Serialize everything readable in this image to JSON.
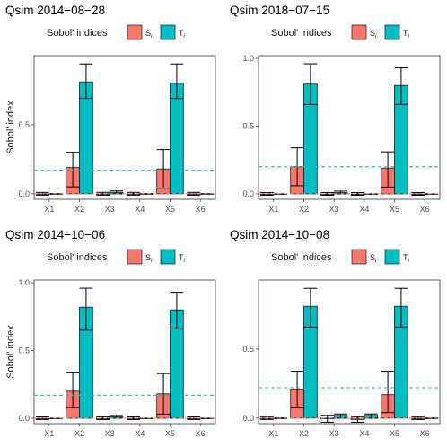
{
  "colors": {
    "si": "#F8766D",
    "ti": "#00BFC4",
    "dummy_line": "#26B7C2"
  },
  "legend": {
    "title": "Sobol' indices",
    "si_label": "S",
    "si_sub": "i",
    "ti_label": "T",
    "ti_sub": "i"
  },
  "chart_data": [
    {
      "type": "bar",
      "title": "Qsim 2014−08−28",
      "ylabel": "Sobol' index",
      "categories": [
        "X1",
        "X2",
        "X3",
        "X4",
        "X5",
        "X6"
      ],
      "ylim": [
        -0.04,
        1.0
      ],
      "yticks": [
        0.0,
        0.5
      ],
      "ytick_labels": [
        "0.0",
        "0.5"
      ],
      "dummy_ti": 0.17,
      "series": [
        {
          "name": "S",
          "values": [
            0.0,
            0.19,
            0.0,
            0.0,
            0.18,
            0.0
          ],
          "lower": [
            -0.01,
            0.05,
            -0.01,
            -0.01,
            0.04,
            -0.01
          ],
          "upper": [
            0.01,
            0.3,
            0.01,
            0.01,
            0.32,
            0.01
          ]
        },
        {
          "name": "T",
          "values": [
            0.0,
            0.81,
            0.01,
            0.0,
            0.8,
            0.0
          ],
          "lower": [
            0.0,
            0.69,
            0.0,
            0.0,
            0.69,
            0.0
          ],
          "upper": [
            0.0,
            0.94,
            0.02,
            0.0,
            0.94,
            0.0
          ]
        }
      ]
    },
    {
      "type": "bar",
      "title": "Qsim 2018−07−15",
      "ylabel": "",
      "categories": [
        "X1",
        "X2",
        "X3",
        "X4",
        "X5",
        "X6"
      ],
      "ylim": [
        -0.04,
        1.02
      ],
      "yticks": [
        0.0,
        0.5,
        1.0
      ],
      "ytick_labels": [
        "0.0",
        "0.5",
        "1.0"
      ],
      "dummy_ti": 0.2,
      "series": [
        {
          "name": "S",
          "values": [
            0.0,
            0.2,
            0.0,
            0.0,
            0.19,
            0.0
          ],
          "lower": [
            -0.01,
            0.06,
            -0.01,
            -0.01,
            0.05,
            -0.01
          ],
          "upper": [
            0.01,
            0.34,
            0.01,
            0.01,
            0.31,
            0.01
          ]
        },
        {
          "name": "T",
          "values": [
            0.0,
            0.81,
            0.01,
            0.0,
            0.8,
            0.0
          ],
          "lower": [
            0.0,
            0.66,
            0.0,
            0.0,
            0.66,
            0.0
          ],
          "upper": [
            0.0,
            0.96,
            0.02,
            0.0,
            0.93,
            0.0
          ]
        }
      ]
    },
    {
      "type": "bar",
      "title": "Qsim 2014−10−06",
      "ylabel": "Sobol' index",
      "categories": [
        "X1",
        "X2",
        "X3",
        "X4",
        "X5",
        "X6"
      ],
      "ylim": [
        -0.04,
        1.02
      ],
      "yticks": [
        0.0,
        0.5,
        1.0
      ],
      "ytick_labels": [
        "0.0",
        "0.5",
        "1.0"
      ],
      "dummy_ti": 0.17,
      "series": [
        {
          "name": "S",
          "values": [
            0.0,
            0.2,
            0.0,
            0.0,
            0.18,
            0.0
          ],
          "lower": [
            -0.01,
            0.08,
            -0.01,
            -0.01,
            0.03,
            -0.01
          ],
          "upper": [
            0.01,
            0.34,
            0.01,
            0.01,
            0.33,
            0.01
          ]
        },
        {
          "name": "T",
          "values": [
            0.0,
            0.82,
            0.01,
            0.0,
            0.8,
            0.0
          ],
          "lower": [
            0.0,
            0.65,
            0.0,
            0.0,
            0.66,
            0.0
          ],
          "upper": [
            0.0,
            0.96,
            0.02,
            0.0,
            0.93,
            0.0
          ]
        }
      ]
    },
    {
      "type": "bar",
      "title": "Qsim 2014−10−08",
      "ylabel": "",
      "categories": [
        "X1",
        "X2",
        "X3",
        "X4",
        "X5",
        "X6"
      ],
      "ylim": [
        -0.04,
        1.0
      ],
      "yticks": [
        0.0,
        0.5
      ],
      "ytick_labels": [
        "0.0",
        "0.5"
      ],
      "dummy_ti": 0.22,
      "series": [
        {
          "name": "S",
          "values": [
            0.0,
            0.21,
            0.0,
            -0.01,
            0.17,
            0.0
          ],
          "lower": [
            -0.01,
            0.08,
            -0.03,
            -0.03,
            0.04,
            -0.01
          ],
          "upper": [
            0.01,
            0.34,
            0.02,
            0.01,
            0.34,
            0.01
          ]
        },
        {
          "name": "T",
          "values": [
            0.0,
            0.81,
            0.02,
            0.02,
            0.81,
            0.0
          ],
          "lower": [
            0.0,
            0.66,
            0.0,
            0.0,
            0.66,
            0.0
          ],
          "upper": [
            0.0,
            0.94,
            0.03,
            0.03,
            0.94,
            0.0
          ]
        }
      ]
    }
  ]
}
